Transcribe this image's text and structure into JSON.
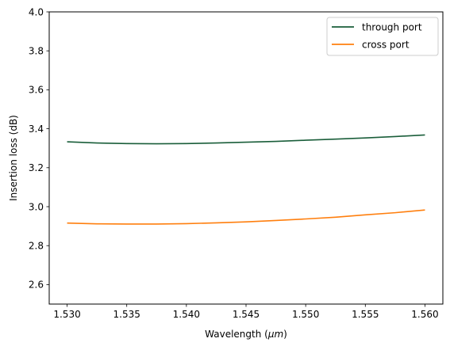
{
  "chart_data": {
    "type": "line",
    "xlabel_prefix": "Wavelength (",
    "xlabel_unit": "μm",
    "xlabel_suffix": ")",
    "ylabel": "Insertion loss (dB)",
    "xlim": [
      1.5285,
      1.5615
    ],
    "ylim": [
      2.5,
      4.0
    ],
    "xticks": [
      1.53,
      1.535,
      1.54,
      1.545,
      1.55,
      1.555,
      1.56
    ],
    "xtick_labels": [
      "1.530",
      "1.535",
      "1.540",
      "1.545",
      "1.550",
      "1.555",
      "1.560"
    ],
    "yticks": [
      2.6,
      2.8,
      3.0,
      3.2,
      3.4,
      3.6,
      3.8,
      4.0
    ],
    "ytick_labels": [
      "2.6",
      "2.8",
      "3.0",
      "3.2",
      "3.4",
      "3.6",
      "3.8",
      "4.0"
    ],
    "grid": false,
    "legend_position": "top-right",
    "x": [
      1.53,
      1.5325,
      1.535,
      1.5375,
      1.54,
      1.5425,
      1.545,
      1.5475,
      1.55,
      1.5525,
      1.555,
      1.5575,
      1.56
    ],
    "series": [
      {
        "name": "through port",
        "color": "#1a5e3a",
        "values": [
          3.333,
          3.327,
          3.324,
          3.323,
          3.324,
          3.327,
          3.331,
          3.335,
          3.341,
          3.347,
          3.353,
          3.36,
          3.368
        ]
      },
      {
        "name": "cross port",
        "color": "#ff7f0e",
        "values": [
          2.916,
          2.912,
          2.911,
          2.911,
          2.913,
          2.917,
          2.922,
          2.929,
          2.937,
          2.946,
          2.958,
          2.969,
          2.983
        ]
      }
    ]
  }
}
